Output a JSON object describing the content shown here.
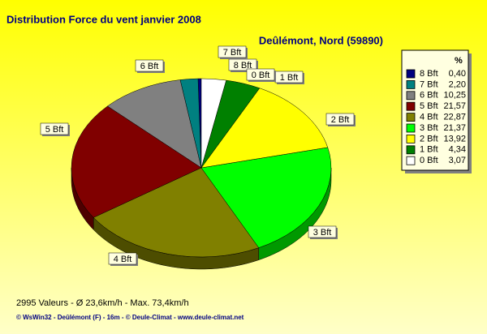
{
  "chart_data": {
    "type": "pie",
    "title": "Distribution Force du vent  janvier 2008",
    "subtitle": "Deûlémont, Nord (59890)",
    "legend_header": "%",
    "footer": "2995 Valeurs   -   Ø 23,6km/h  -  Max. 73,4km/h",
    "credit": "© WsWin32  -  Deûlémont (F) - 16m  -  © Deule-Climat - www.deule-climat.net",
    "categories": [
      "8 Bft",
      "7 Bft",
      "6 Bft",
      "5 Bft",
      "4 Bft",
      "3 Bft",
      "2 Bft",
      "1 Bft",
      "0 Bft"
    ],
    "values": [
      0.4,
      2.2,
      10.25,
      21.57,
      22.87,
      21.37,
      13.92,
      4.34,
      3.07
    ],
    "value_labels": [
      "0,40",
      "2,20",
      "10,25",
      "21,57",
      "22,87",
      "21,37",
      "13,92",
      "4,34",
      "3,07"
    ],
    "colors": [
      "#000080",
      "#008080",
      "#808080",
      "#800000",
      "#808000",
      "#00ff00",
      "#ffff00",
      "#008000",
      "#ffffff"
    ],
    "legend": "right"
  }
}
